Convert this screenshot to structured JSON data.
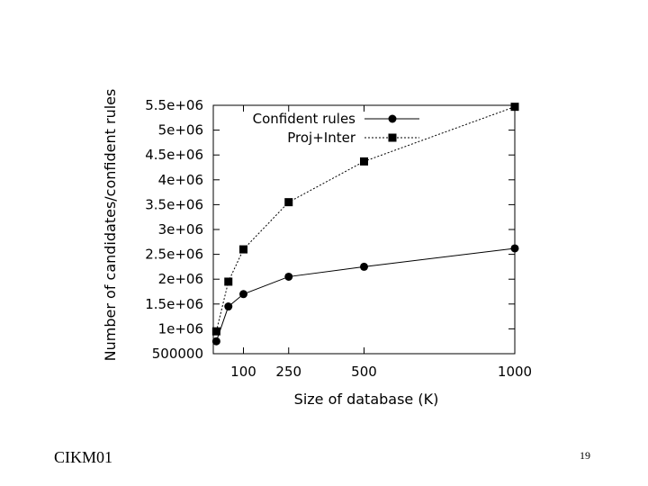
{
  "footer": {
    "left": "CIKM01",
    "page_number": "19"
  },
  "chart_data": {
    "type": "line",
    "xlabel": "Size of database (K)",
    "ylabel": "Number of candidates/confident rules",
    "x_ticks": [
      100,
      250,
      500,
      1000
    ],
    "y_ticks": [
      500000,
      1000000,
      1500000,
      2000000,
      2500000,
      3000000,
      3500000,
      4000000,
      4500000,
      5000000,
      5500000
    ],
    "y_tick_labels": [
      "500000",
      "1e+06",
      "1.5e+06",
      "2e+06",
      "2.5e+06",
      "3e+06",
      "3.5e+06",
      "4e+06",
      "4.5e+06",
      "5e+06",
      "5.5e+06"
    ],
    "xlim": [
      0,
      1000
    ],
    "ylim": [
      500000,
      5500000
    ],
    "legend_position": "top-left",
    "series": [
      {
        "name": "Confident rules",
        "marker": "circle",
        "line_style": "solid",
        "x": [
          10,
          50,
          100,
          250,
          500,
          1000
        ],
        "values": [
          750000,
          1450000,
          1700000,
          2050000,
          2250000,
          2620000
        ]
      },
      {
        "name": "Proj+Inter",
        "marker": "square",
        "line_style": "dotted",
        "x": [
          10,
          50,
          100,
          250,
          500,
          1000
        ],
        "values": [
          950000,
          1950000,
          2600000,
          3550000,
          4370000,
          5470000
        ]
      }
    ]
  }
}
